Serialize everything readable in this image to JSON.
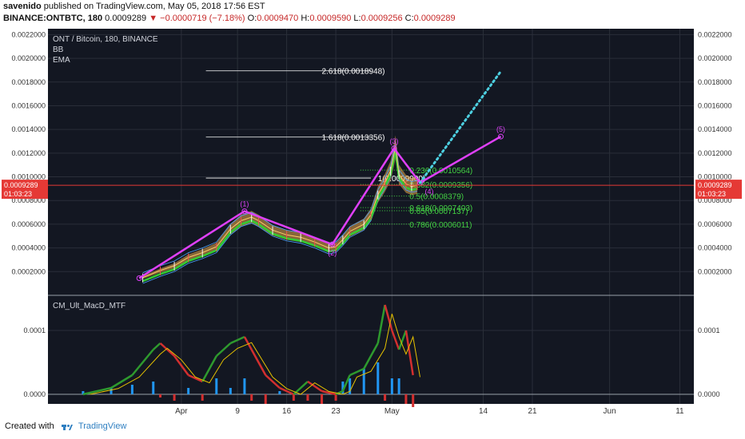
{
  "header": {
    "author": "savenido",
    "published_text": "published on TradingView.com, May 05, 2018 17:56 EST",
    "symbol": "BINANCE:ONTBTC, 180",
    "last": "0.0009289",
    "change": "−0.0000719 (−7.18%)",
    "o_label": "O:",
    "o_value": "0.0009470",
    "h_label": "H:",
    "h_value": "0.0009590",
    "l_label": "L:",
    "l_value": "0.0009256",
    "c_label": "C:",
    "c_value": "0.0009289"
  },
  "legend": {
    "title": "ONT / Bitcoin, 180, BINANCE",
    "ind1": "BB",
    "ind2": "EMA"
  },
  "macd_label": "CM_Ult_MacD_MTF",
  "footer": {
    "created": "Created with",
    "brand": "TradingView"
  },
  "price_tag": {
    "price": "0.0009289",
    "countdown": "01:03:23"
  },
  "chart_data": {
    "type": "line",
    "title": "ONT / Bitcoin, 180, BINANCE",
    "ylim": [
      0,
      0.00225
    ],
    "y_ticks": [
      "0.0002000",
      "0.0004000",
      "0.0006000",
      "0.0008000",
      "0.0010000",
      "0.0012000",
      "0.0014000",
      "0.0016000",
      "0.0018000",
      "0.0020000",
      "0.0022000"
    ],
    "y_tick_values": [
      0.0002,
      0.0004,
      0.0006,
      0.0008,
      0.001,
      0.0012,
      0.0014,
      0.0016,
      0.0018,
      0.002,
      0.0022
    ],
    "x_ticks": [
      "Apr",
      "9",
      "16",
      "23",
      "May",
      "14",
      "21",
      "Jun",
      "11"
    ],
    "x_tick_days": [
      0,
      8,
      15,
      22,
      30,
      43,
      50,
      61,
      71
    ],
    "xlim": [
      -19,
      73
    ],
    "price_series": {
      "day": [
        -5.5,
        -3,
        -1,
        1,
        3,
        5,
        7,
        8.5,
        10,
        11,
        13,
        15,
        17,
        19,
        21,
        22,
        23,
        24,
        26,
        27,
        28,
        29,
        29.8,
        30.5,
        31,
        32,
        32.8,
        33.6
      ],
      "price": [
        0.00015,
        0.00021,
        0.00025,
        0.00032,
        0.00036,
        0.00041,
        0.00056,
        0.00063,
        0.00066,
        0.00063,
        0.00055,
        0.00051,
        0.00049,
        0.00045,
        0.0004,
        0.00041,
        0.00047,
        0.00054,
        0.0006,
        0.00068,
        0.00085,
        0.00095,
        0.00105,
        0.00125,
        0.00102,
        0.00094,
        0.00092,
        0.000929
      ]
    },
    "elliott_wave": {
      "points": [
        {
          "day": -6,
          "price": 0.000145,
          "label": ""
        },
        {
          "day": 9,
          "price": 0.00071,
          "label": "(1)"
        },
        {
          "day": 21.5,
          "price": 0.00043,
          "label": "(2)"
        },
        {
          "day": 30.3,
          "price": 0.00124,
          "label": "(3)"
        },
        {
          "day": 34,
          "price": 0.00095,
          "label": "(4)"
        },
        {
          "day": 45.5,
          "price": 0.00134,
          "label": "(5)"
        }
      ],
      "projection": [
        {
          "day": 34,
          "price": 0.00095
        },
        {
          "day": 45.5,
          "price": 0.00189
        }
      ]
    },
    "fib_extension": [
      {
        "label": "2.618(0.0018948)",
        "value": 0.0018948
      },
      {
        "label": "1.618(0.0013356)",
        "value": 0.0013356
      },
      {
        "label": "1(0.0009900)",
        "value": 0.00099
      }
    ],
    "fib_retracement": [
      {
        "label": "0.236(0.0010564)",
        "value": 0.0010564
      },
      {
        "label": "0.382(0.0009356)",
        "value": 0.0009356
      },
      {
        "label": "0.5(0.0008379)",
        "value": 0.0008379
      },
      {
        "label": "0.618(0.0007403)",
        "value": 0.0007403
      },
      {
        "label": "0.65(0.0007137)",
        "value": 0.0007137
      },
      {
        "label": "0.786(0.0006011)",
        "value": 0.0006011
      }
    ],
    "macd": {
      "ylim": [
        -1.5e-05,
        0.000155
      ],
      "y_ticks": [
        "0.0000",
        "0.0001"
      ],
      "y_tick_values": [
        0,
        0.0001
      ],
      "day": [
        -14,
        -10,
        -7,
        -4,
        -3,
        -1,
        1,
        3,
        5,
        7,
        9,
        10,
        12,
        14,
        16,
        18,
        20,
        22,
        23,
        24,
        26,
        28,
        29,
        30,
        31,
        32,
        33
      ],
      "macd_line": [
        0,
        1e-05,
        3e-05,
        7e-05,
        8e-05,
        6e-05,
        3e-05,
        2e-05,
        6e-05,
        8e-05,
        9e-05,
        7e-05,
        3e-05,
        1e-05,
        0,
        2e-05,
        5e-06,
        0,
        5e-06,
        3e-05,
        4e-05,
        8e-05,
        0.00014,
        0.0001,
        7e-05,
        0.0001,
        3e-05
      ],
      "hist": [
        5e-06,
        1e-05,
        1.5e-05,
        2e-05,
        -5e-06,
        -1e-05,
        1e-05,
        -1e-05,
        2.5e-05,
        1e-05,
        2.5e-05,
        -1e-05,
        -1.5e-05,
        5e-06,
        -1e-05,
        -1e-05,
        -1.5e-05,
        -1e-05,
        2e-05,
        2.5e-05,
        4e-05,
        5e-05,
        -1e-05,
        2.5e-05,
        2.5e-05,
        -1.5e-05,
        -2e-05
      ]
    },
    "colors": {
      "background": "#131722",
      "grid": "#2a2e39",
      "wave": "#e040fb",
      "projection": "#4dd0e1",
      "fib_retracement": "#43d143",
      "fib_extension": "#ffffff",
      "price_tag": "#e53935",
      "macd_up": "#2e9a2e",
      "macd_down": "#d32f2f",
      "hist_up": "#2196f3",
      "hist_down": "#d32f2f"
    }
  }
}
